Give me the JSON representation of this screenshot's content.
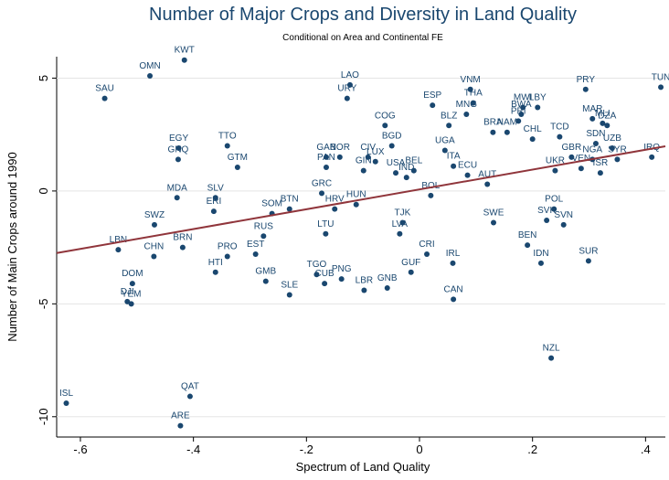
{
  "chart_data": {
    "type": "scatter",
    "title": "Number of Major Crops and Diversity in Land Quality",
    "subtitle": "Conditional on Area and Continental FE",
    "x_label": "Spectrum of Land Quality",
    "y_label": "Number of Main Crops around 1990",
    "color": "#1a476f",
    "fit_color": "#90353b",
    "grid": true,
    "xlim": [
      -0.642,
      0.435
    ],
    "ylim": [
      -10.9,
      5.95
    ],
    "xticks": [
      {
        "value": -0.6,
        "label": "-.6"
      },
      {
        "value": -0.4,
        "label": "-.4"
      },
      {
        "value": -0.2,
        "label": "-.2"
      },
      0,
      {
        "value": 0.2,
        "label": ".2"
      },
      {
        "value": 0.4,
        "label": ".4"
      }
    ],
    "yticks": [
      5,
      0,
      -5,
      -10
    ],
    "fit": {
      "x": [
        -0.642,
        0.435
      ],
      "y": [
        -2.75,
        1.98
      ]
    },
    "labels": [
      "KWT",
      "OMN",
      "SAU",
      "LAO",
      "URY",
      "VNM",
      "TUN",
      "PRY",
      "ESP",
      "THA",
      "MNG",
      "LBY",
      "MWI",
      "BWA",
      "BLZ",
      "COG",
      "MAR",
      "MLI",
      "DZA",
      "PRI",
      "BRA",
      "NAM",
      "CHL",
      "TCD",
      "TTO",
      "EGY",
      "GNQ",
      "GTM",
      "BGD",
      "UGA",
      "CIV",
      "GAB",
      "NOR",
      "PAN",
      "LUX",
      "GIN",
      "USA",
      "IND",
      "BEL",
      "SDN",
      "UZB",
      "SYR",
      "IRQ",
      "ISR",
      "VEN",
      "GBR",
      "NGA",
      "ITA",
      "ECU",
      "MDA",
      "SLV",
      "ERI",
      "BTN",
      "SOM",
      "GRC",
      "HUN",
      "HRV",
      "SWZ",
      "BRN",
      "LBN",
      "CHN",
      "RUS",
      "EST",
      "PRO",
      "HTI",
      "GMB",
      "SLE",
      "TGO",
      "CUB",
      "PNG",
      "LBR",
      "GNB",
      "GUF",
      "CRI",
      "IRL",
      "CAN",
      "DOM",
      "DJI",
      "YEM",
      "ISL",
      "QAT",
      "ARE",
      "NZL",
      "SUR",
      "IDN",
      "BEN",
      "SWE",
      "TJK",
      "LVA",
      "SVN",
      "POL",
      "SVK",
      "LTU",
      "BOL",
      "AUT",
      "UKR"
    ],
    "x": [
      -0.416,
      -0.477,
      -0.557,
      -0.123,
      -0.128,
      0.09,
      0.427,
      0.294,
      0.023,
      0.095,
      0.083,
      0.209,
      0.183,
      0.18,
      0.052,
      -0.061,
      0.306,
      0.324,
      0.332,
      0.175,
      0.13,
      0.155,
      0.2,
      0.248,
      -0.34,
      -0.426,
      -0.427,
      -0.322,
      -0.049,
      0.045,
      -0.091,
      -0.165,
      -0.141,
      -0.165,
      -0.078,
      -0.099,
      -0.042,
      -0.023,
      -0.01,
      0.312,
      0.341,
      0.35,
      0.411,
      0.32,
      0.286,
      0.269,
      0.306,
      0.06,
      0.085,
      -0.429,
      -0.361,
      -0.364,
      -0.23,
      -0.261,
      -0.173,
      -0.112,
      -0.15,
      -0.469,
      -0.419,
      -0.533,
      -0.47,
      -0.276,
      -0.29,
      -0.34,
      -0.361,
      -0.272,
      -0.23,
      -0.182,
      -0.168,
      -0.138,
      -0.098,
      -0.057,
      -0.015,
      0.013,
      0.059,
      0.06,
      -0.508,
      -0.517,
      -0.51,
      -0.625,
      -0.406,
      -0.423,
      0.233,
      0.299,
      0.215,
      0.191,
      0.131,
      -0.03,
      -0.035,
      0.255,
      0.238,
      0.225,
      -0.166,
      0.02,
      0.12,
      0.24
    ],
    "y": [
      5.8,
      5.1,
      4.1,
      4.7,
      4.1,
      4.5,
      4.6,
      4.5,
      3.8,
      3.9,
      3.4,
      3.7,
      3.7,
      3.4,
      2.9,
      2.9,
      3.2,
      3.0,
      2.9,
      3.1,
      2.6,
      2.6,
      2.3,
      2.4,
      2.0,
      1.9,
      1.4,
      1.05,
      2.0,
      1.8,
      1.5,
      1.5,
      1.5,
      1.05,
      1.3,
      0.9,
      0.8,
      0.6,
      0.9,
      2.1,
      1.9,
      1.4,
      1.5,
      0.8,
      1.0,
      1.5,
      1.4,
      1.1,
      0.7,
      -0.3,
      -0.3,
      -0.9,
      -0.8,
      -1.0,
      -0.1,
      -0.6,
      -0.8,
      -1.5,
      -2.5,
      -2.6,
      -2.9,
      -2.0,
      -2.8,
      -2.9,
      -3.6,
      -4.0,
      -4.6,
      -3.7,
      -4.1,
      -3.9,
      -4.4,
      -4.3,
      -3.6,
      -2.8,
      -3.2,
      -4.8,
      -4.1,
      -4.9,
      -5.0,
      -9.4,
      -9.1,
      -10.4,
      -7.4,
      -3.1,
      -3.2,
      -2.4,
      -1.4,
      -1.4,
      -1.9,
      -1.5,
      -0.8,
      -1.3,
      -1.9,
      -0.2,
      0.3,
      0.9
    ]
  }
}
